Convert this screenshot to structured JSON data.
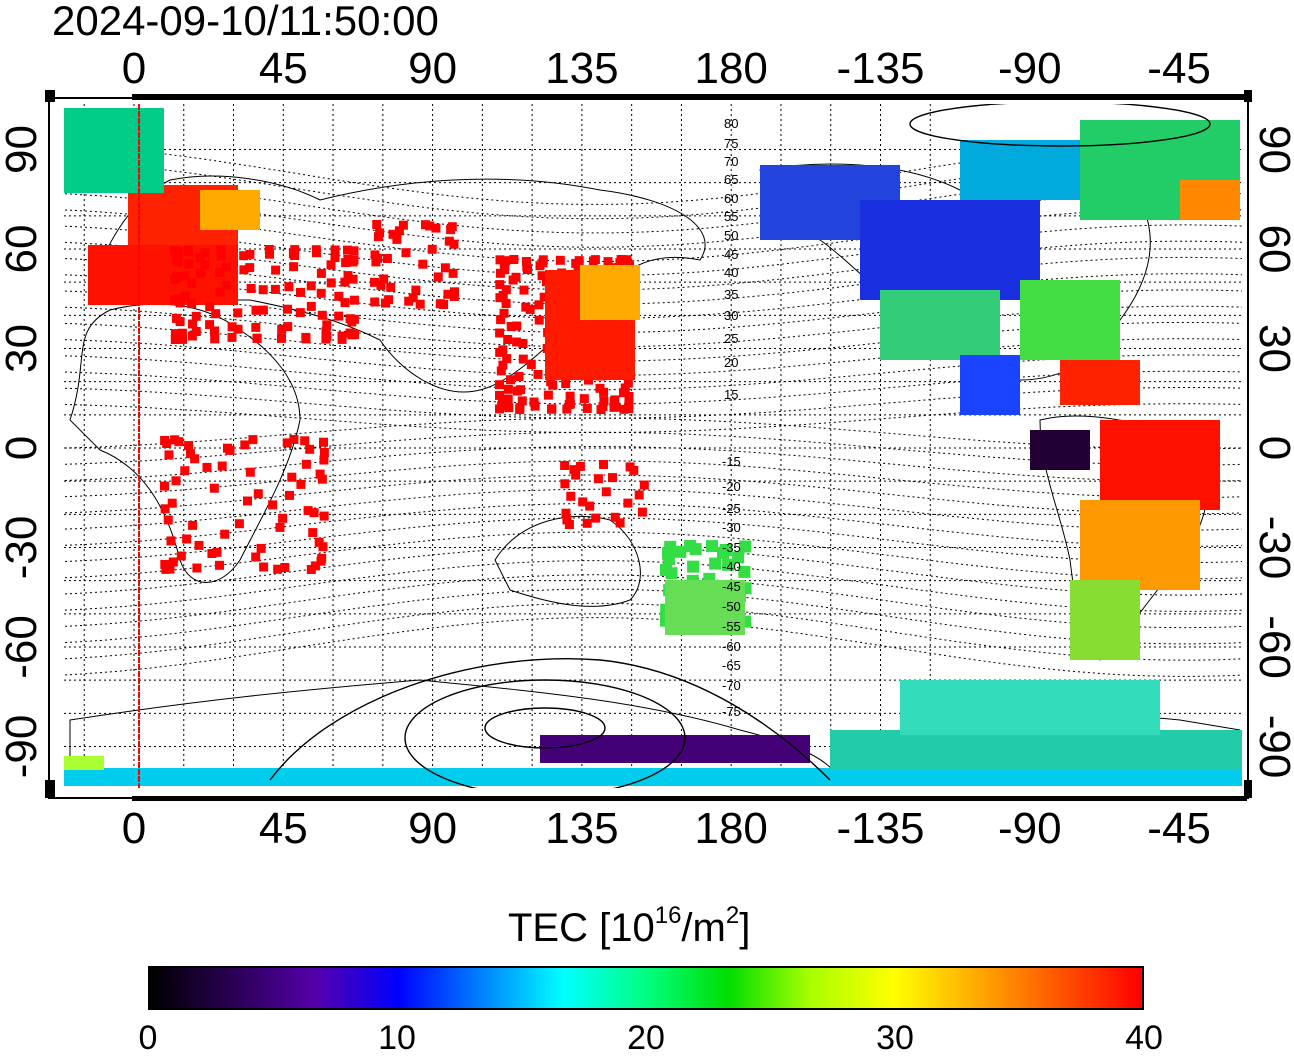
{
  "title": "2024-09-10/11:50:00",
  "map": {
    "top_lon_labels": [
      "0",
      "45",
      "90",
      "135",
      "180",
      "-135",
      "-90",
      "-45"
    ],
    "bottom_lon_labels": [
      "0",
      "45",
      "90",
      "135",
      "180",
      "-135",
      "-90",
      "-45"
    ],
    "left_lat_labels": [
      "90",
      "60",
      "30",
      "0",
      "-30",
      "-60",
      "-90"
    ],
    "right_lat_labels": [
      "90",
      "60",
      "30",
      "0",
      "-30",
      "-60",
      "-90"
    ],
    "magnetic_lat_labels_north": [
      "80",
      "75",
      "70",
      "65",
      "60",
      "55",
      "50",
      "45",
      "40",
      "35",
      "30",
      "25",
      "20",
      "15"
    ],
    "magnetic_lat_labels_south": [
      "-15",
      "-20",
      "-25",
      "-30",
      "-35",
      "-40",
      "-45",
      "-50",
      "-55",
      "-60",
      "-65",
      "-70",
      "-75"
    ],
    "terminator_line_color": "#ff0000"
  },
  "colorbar": {
    "label_prefix": "TEC  [10",
    "label_exp1": "16",
    "label_mid": "/m",
    "label_exp2": "2",
    "label_suffix": "]",
    "ticks": [
      "0",
      "10",
      "20",
      "30",
      "40"
    ],
    "range": [
      0,
      40
    ],
    "colormap": [
      "#000000",
      "#2a0055",
      "#5500aa",
      "#0000ff",
      "#0080ff",
      "#00ffff",
      "#00ff80",
      "#00dd00",
      "#aaff00",
      "#ffff00",
      "#ffaa00",
      "#ff5500",
      "#ff0000"
    ]
  }
}
